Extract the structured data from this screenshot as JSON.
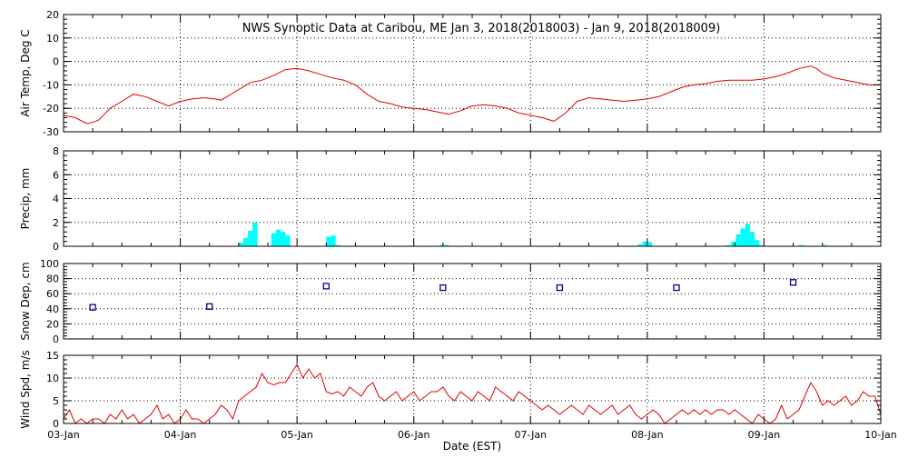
{
  "title": "NWS Synoptic Data at Caribou, ME   Jan  3, 2018(2018003) - Jan  9, 2018(2018009)",
  "xlabel": "Date (EST)",
  "chart_data": [
    {
      "type": "line",
      "ylabel": "Air Temp, Deg C",
      "ylim": [
        -30,
        20
      ],
      "yticks": [
        -30,
        -20,
        -10,
        0,
        10,
        20
      ],
      "color": "#e00000",
      "series": [
        {
          "x": [
            0,
            0.1,
            0.2,
            0.25,
            0.3,
            0.4,
            0.5,
            0.6,
            0.7,
            0.8,
            0.9,
            1.0,
            1.1,
            1.2,
            1.3,
            1.35,
            1.4,
            1.5,
            1.6,
            1.7,
            1.75,
            1.8,
            1.9,
            2.0,
            2.1,
            2.2,
            2.3,
            2.4,
            2.5,
            2.6,
            2.7,
            2.8,
            2.9,
            3.0,
            3.1,
            3.2,
            3.3,
            3.4,
            3.5,
            3.6,
            3.7,
            3.8,
            3.9,
            4.0,
            4.1,
            4.2,
            4.3,
            4.4,
            4.5,
            4.6,
            4.7,
            4.8,
            4.9,
            5.0,
            5.1,
            5.2,
            5.3,
            5.4,
            5.5,
            5.6,
            5.7,
            5.8,
            5.9,
            6.0,
            6.1,
            6.2,
            6.3,
            6.4,
            6.45,
            6.5,
            6.55,
            6.6,
            6.7,
            6.8,
            6.9,
            7.0
          ],
          "values": [
            -23,
            -24,
            -26.5,
            -26,
            -25,
            -20,
            -17,
            -14,
            -15,
            -17,
            -19,
            -17,
            -16,
            -15.5,
            -16,
            -16.5,
            -15,
            -12,
            -9,
            -8,
            -7,
            -6,
            -3.5,
            -3,
            -4,
            -5.5,
            -7,
            -8,
            -10,
            -14,
            -17,
            -18,
            -19.5,
            -20,
            -20.5,
            -21.5,
            -22.5,
            -21,
            -19,
            -18.5,
            -19,
            -20,
            -22,
            -23,
            -24,
            -25.5,
            -22,
            -17,
            -15.5,
            -16,
            -16.5,
            -17,
            -16.5,
            -16,
            -15,
            -13,
            -11,
            -10,
            -9.5,
            -8.5,
            -8,
            -8,
            -8,
            -7.5,
            -6.5,
            -5,
            -3,
            -2,
            -3,
            -5,
            -6,
            -7,
            -8,
            -9,
            -10,
            -10
          ]
        }
      ]
    },
    {
      "type": "bar",
      "ylabel": "Precip, mm",
      "ylim": [
        0,
        8
      ],
      "yticks": [
        0,
        2,
        4,
        6,
        8
      ],
      "color": "#00ffff",
      "bar_width_days": 0.0417,
      "bars": {
        "x": [
          1.52,
          1.56,
          1.6,
          1.64,
          1.8,
          1.84,
          1.88,
          1.92,
          2.27,
          2.31,
          2.35,
          3.24,
          3.28,
          4.94,
          4.98,
          5.02,
          5.7,
          5.74,
          5.78,
          5.82,
          5.86,
          5.9,
          5.94,
          5.98,
          6.32,
          6.52
        ],
        "values": [
          0.3,
          0.7,
          1.3,
          2.0,
          1.1,
          1.4,
          1.2,
          0.9,
          0.8,
          0.9,
          0.1,
          0.1,
          0.1,
          0.15,
          0.4,
          0.35,
          0.1,
          0.4,
          1.0,
          1.5,
          1.9,
          1.2,
          0.5,
          0.1,
          0.1,
          0.1
        ]
      }
    },
    {
      "type": "scatter",
      "ylabel": "Snow Dep, cm",
      "ylim": [
        0,
        100
      ],
      "yticks": [
        0,
        20,
        40,
        60,
        80,
        100
      ],
      "color": "#00008b",
      "points": {
        "x": [
          0.25,
          1.25,
          2.25,
          3.25,
          4.25,
          5.25,
          6.25
        ],
        "values": [
          42,
          43,
          70,
          68,
          68,
          68,
          75
        ]
      }
    },
    {
      "type": "line",
      "ylabel": "Wind Spd, m/s",
      "ylim": [
        0,
        15
      ],
      "yticks": [
        0,
        5,
        10,
        15
      ],
      "color": "#e00000",
      "series": [
        {
          "x": [
            0,
            0.05,
            0.1,
            0.15,
            0.2,
            0.25,
            0.3,
            0.35,
            0.4,
            0.45,
            0.5,
            0.55,
            0.6,
            0.65,
            0.7,
            0.75,
            0.8,
            0.85,
            0.9,
            0.95,
            1.0,
            1.05,
            1.1,
            1.15,
            1.2,
            1.25,
            1.3,
            1.35,
            1.4,
            1.45,
            1.5,
            1.55,
            1.6,
            1.65,
            1.7,
            1.75,
            1.8,
            1.85,
            1.9,
            1.95,
            2.0,
            2.05,
            2.1,
            2.15,
            2.2,
            2.25,
            2.3,
            2.35,
            2.4,
            2.45,
            2.5,
            2.55,
            2.6,
            2.65,
            2.7,
            2.75,
            2.8,
            2.85,
            2.9,
            2.95,
            3.0,
            3.05,
            3.1,
            3.15,
            3.2,
            3.25,
            3.3,
            3.35,
            3.4,
            3.45,
            3.5,
            3.55,
            3.6,
            3.65,
            3.7,
            3.75,
            3.8,
            3.85,
            3.9,
            3.95,
            4.0,
            4.05,
            4.1,
            4.15,
            4.2,
            4.25,
            4.3,
            4.35,
            4.4,
            4.45,
            4.5,
            4.55,
            4.6,
            4.65,
            4.7,
            4.75,
            4.8,
            4.85,
            4.9,
            4.95,
            5.0,
            5.05,
            5.1,
            5.15,
            5.2,
            5.25,
            5.3,
            5.35,
            5.4,
            5.45,
            5.5,
            5.55,
            5.6,
            5.65,
            5.7,
            5.75,
            5.8,
            5.85,
            5.9,
            5.95,
            6.0,
            6.05,
            6.1,
            6.15,
            6.2,
            6.25,
            6.3,
            6.35,
            6.4,
            6.45,
            6.5,
            6.55,
            6.6,
            6.65,
            6.7,
            6.75,
            6.8,
            6.85,
            6.9,
            6.95,
            7.0
          ],
          "values": [
            1,
            3,
            0,
            1,
            0,
            1,
            1,
            0,
            2,
            1,
            3,
            1,
            2,
            0,
            1,
            2,
            4,
            1,
            2,
            0,
            1,
            3,
            1,
            1,
            0,
            1,
            2,
            4,
            3,
            1,
            5,
            6,
            7,
            8,
            11,
            9,
            8.5,
            9,
            9,
            11,
            13,
            10,
            12,
            10,
            11,
            7,
            6.5,
            7,
            6,
            8,
            7,
            6,
            8,
            9,
            6,
            5,
            6,
            7,
            5,
            6,
            7,
            5,
            6,
            7,
            7,
            8,
            6,
            5,
            7,
            6,
            5,
            7,
            6,
            5,
            8,
            7,
            6,
            5,
            7,
            6,
            5,
            4,
            3,
            4,
            3,
            2,
            3,
            4,
            3,
            2,
            4,
            3,
            2,
            3,
            4,
            2,
            3,
            4,
            2,
            1,
            2,
            3,
            2,
            0,
            1,
            2,
            3,
            2,
            3,
            2,
            3,
            2,
            3,
            3,
            2,
            3,
            2,
            1,
            0,
            2,
            1,
            0,
            1,
            4,
            1,
            2,
            3,
            6,
            9,
            7,
            4,
            5,
            4,
            5,
            6,
            4,
            5,
            7,
            6,
            6,
            2
          ]
        }
      ]
    }
  ],
  "x_tick_labels": [
    "03-Jan",
    "04-Jan",
    "05-Jan",
    "06-Jan",
    "07-Jan",
    "08-Jan",
    "09-Jan",
    "10-Jan"
  ],
  "xlim": [
    0,
    7
  ],
  "grid": "dotted"
}
